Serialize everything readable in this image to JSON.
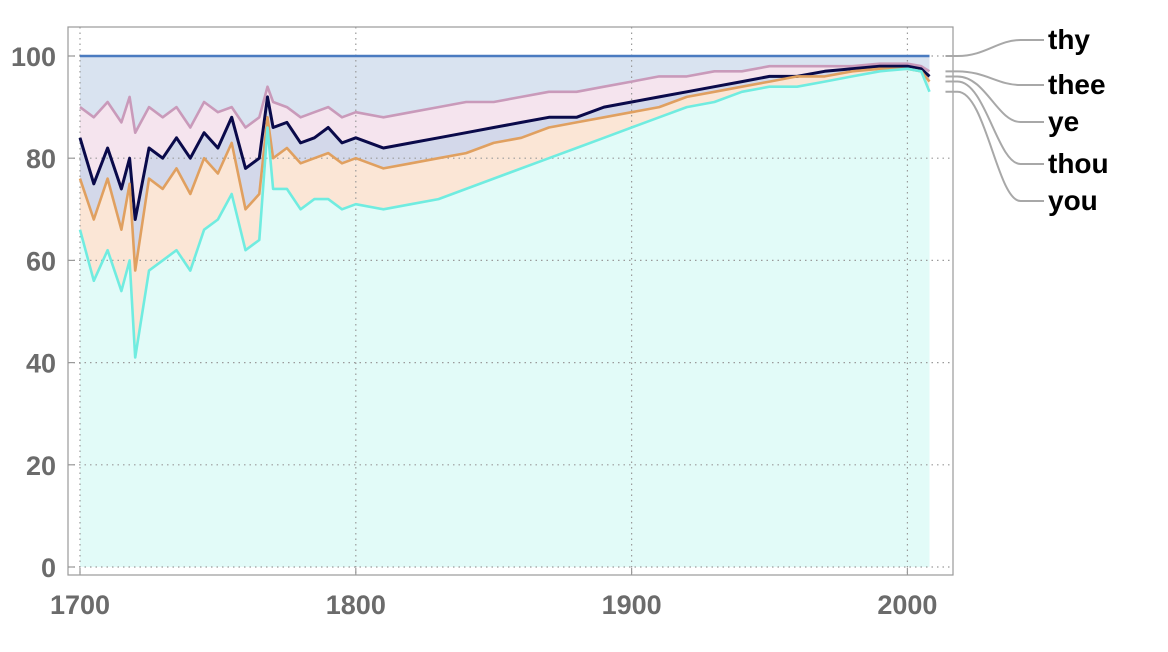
{
  "chart_data": {
    "type": "area",
    "title": "",
    "xlabel": "",
    "ylabel": "",
    "xlim": [
      1700,
      2010
    ],
    "ylim": [
      0,
      100
    ],
    "x_ticks": [
      1700,
      1800,
      1900,
      2000
    ],
    "y_ticks": [
      0,
      20,
      40,
      60,
      80,
      100
    ],
    "grid": true,
    "legend_position": "right",
    "stacked_percent": true,
    "x": [
      1700,
      1705,
      1710,
      1715,
      1718,
      1720,
      1725,
      1730,
      1735,
      1740,
      1745,
      1750,
      1755,
      1760,
      1765,
      1768,
      1770,
      1775,
      1780,
      1785,
      1790,
      1795,
      1800,
      1810,
      1820,
      1830,
      1840,
      1850,
      1860,
      1870,
      1880,
      1890,
      1900,
      1910,
      1920,
      1930,
      1940,
      1950,
      1960,
      1970,
      1980,
      1990,
      2000,
      2005,
      2008
    ],
    "series": [
      {
        "name": "thy",
        "color": "#4a7bc0",
        "values": [
          100,
          100,
          100,
          100,
          100,
          100,
          100,
          100,
          100,
          100,
          100,
          100,
          100,
          100,
          100,
          100,
          100,
          100,
          100,
          100,
          100,
          100,
          100,
          100,
          100,
          100,
          100,
          100,
          100,
          100,
          100,
          100,
          100,
          100,
          100,
          100,
          100,
          100,
          100,
          100,
          100,
          100,
          100,
          100,
          100
        ]
      },
      {
        "name": "thee",
        "color": "#c99aba",
        "values": [
          90,
          88,
          91,
          87,
          92,
          85,
          90,
          88,
          90,
          86,
          91,
          89,
          90,
          86,
          88,
          94,
          91,
          90,
          88,
          89,
          90,
          88,
          89,
          88,
          89,
          90,
          91,
          91,
          92,
          93,
          93,
          94,
          95,
          96,
          96,
          97,
          97,
          98,
          98,
          98,
          98,
          98.5,
          98.5,
          98,
          97
        ]
      },
      {
        "name": "ye",
        "color": "#0a0a4a",
        "values": [
          84,
          75,
          82,
          74,
          80,
          68,
          82,
          80,
          84,
          80,
          85,
          82,
          88,
          78,
          80,
          92,
          86,
          87,
          83,
          84,
          86,
          83,
          84,
          82,
          83,
          84,
          85,
          86,
          87,
          88,
          88,
          90,
          91,
          92,
          93,
          94,
          95,
          96,
          96,
          97,
          97.5,
          98,
          98,
          97.5,
          96
        ]
      },
      {
        "name": "thou",
        "color": "#e0a060",
        "values": [
          76,
          68,
          76,
          66,
          75,
          58,
          76,
          74,
          78,
          73,
          80,
          77,
          83,
          70,
          73,
          88,
          80,
          82,
          79,
          80,
          81,
          79,
          80,
          78,
          79,
          80,
          81,
          83,
          84,
          86,
          87,
          88,
          89,
          90,
          92,
          93,
          94,
          95,
          96,
          96,
          97,
          97.5,
          97.5,
          97,
          95
        ]
      },
      {
        "name": "you",
        "color": "#70ece0",
        "values": [
          66,
          56,
          62,
          54,
          60,
          41,
          58,
          60,
          62,
          58,
          66,
          68,
          73,
          62,
          64,
          86,
          74,
          74,
          70,
          72,
          72,
          70,
          71,
          70,
          71,
          72,
          74,
          76,
          78,
          80,
          82,
          84,
          86,
          88,
          90,
          91,
          93,
          94,
          94,
          95,
          96,
          97,
          97.5,
          97,
          93
        ]
      }
    ]
  }
}
